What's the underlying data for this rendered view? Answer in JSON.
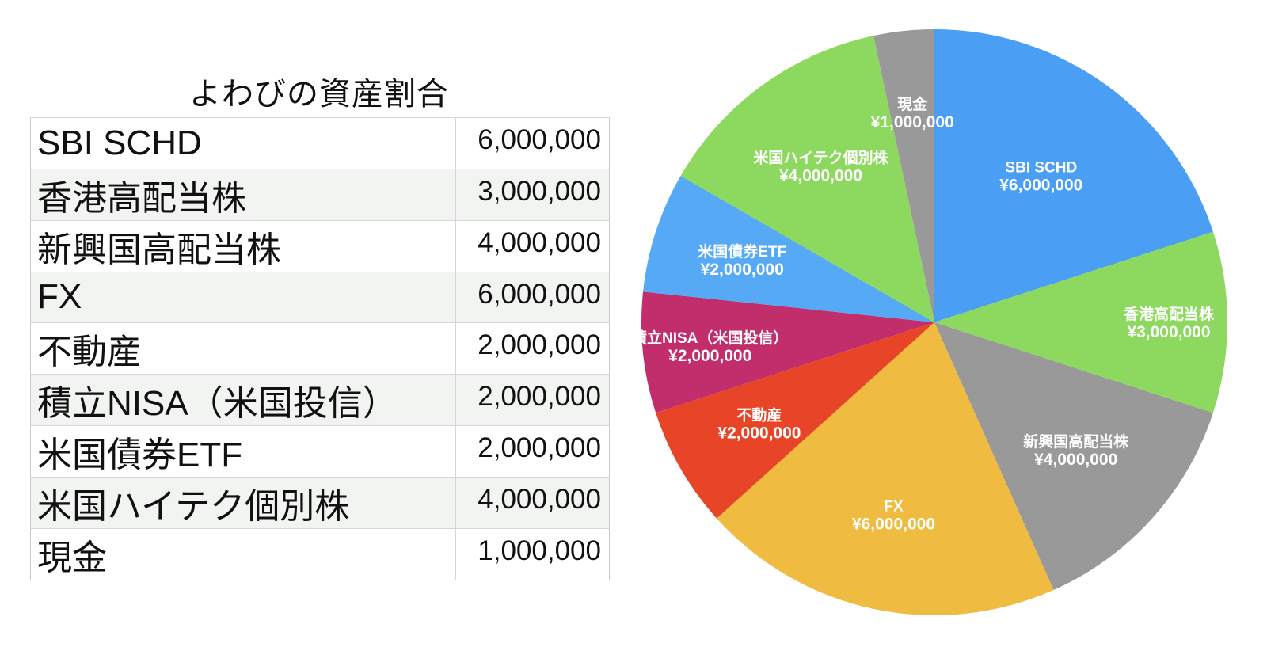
{
  "chart_data": {
    "type": "pie",
    "title": "よわびの資産割合",
    "currency_prefix": "¥",
    "categories": [
      "SBI SCHD",
      "香港高配当株",
      "新興国高配当株",
      "FX",
      "不動産",
      "積立NISA（米国投信）",
      "米国債券ETF",
      "米国ハイテク個別株",
      "現金"
    ],
    "values": [
      6000000,
      3000000,
      4000000,
      6000000,
      2000000,
      2000000,
      2000000,
      4000000,
      1000000
    ],
    "table_values": [
      "6,000,000",
      "3,000,000",
      "4,000,000",
      "6,000,000",
      "2,000,000",
      "2,000,000",
      "2,000,000",
      "4,000,000",
      "1,000,000"
    ],
    "slice_labels": [
      "¥6,000,000",
      "¥3,000,000",
      "¥4,000,000",
      "¥6,000,000",
      "¥2,000,000",
      "¥2,000,000",
      "¥2,000,000",
      "¥4,000,000",
      "¥1,000,000"
    ],
    "colors": [
      "#4a9ff5",
      "#8dd95f",
      "#999999",
      "#efbb41",
      "#e84428",
      "#c22e6c",
      "#55a9f5",
      "#8dd95f",
      "#999999"
    ],
    "start": "12 o'clock, clockwise",
    "legend": "none"
  }
}
